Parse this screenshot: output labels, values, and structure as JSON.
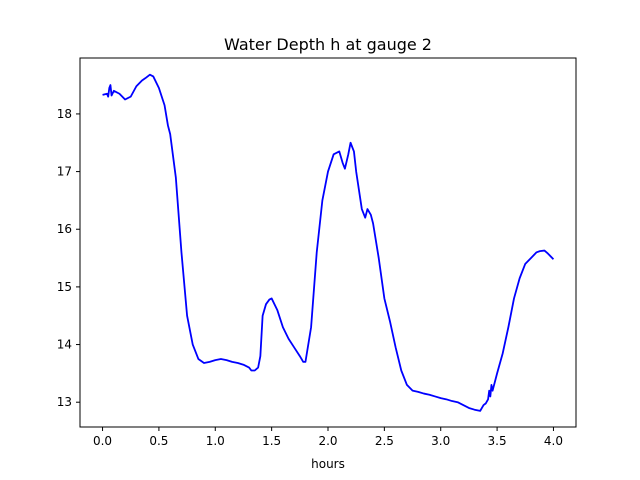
{
  "chart_data": {
    "type": "line",
    "title": "Water Depth h at gauge 2",
    "xlabel": "hours",
    "ylabel": "",
    "xlim": [
      -0.2,
      4.2
    ],
    "ylim": [
      12.57,
      18.97
    ],
    "xticks": [
      0.0,
      0.5,
      1.0,
      1.5,
      2.0,
      2.5,
      3.0,
      3.5,
      4.0
    ],
    "xtick_labels": [
      "0.0",
      "0.5",
      "1.0",
      "1.5",
      "2.0",
      "2.5",
      "3.0",
      "3.5",
      "4.0"
    ],
    "yticks": [
      13,
      14,
      15,
      16,
      17,
      18
    ],
    "ytick_labels": [
      "13",
      "14",
      "15",
      "16",
      "17",
      "18"
    ],
    "grid": false,
    "series": [
      {
        "color": "#0000ff",
        "x": [
          0.0,
          0.04,
          0.05,
          0.06,
          0.07,
          0.08,
          0.1,
          0.15,
          0.2,
          0.25,
          0.3,
          0.35,
          0.38,
          0.42,
          0.45,
          0.5,
          0.55,
          0.58,
          0.6,
          0.65,
          0.7,
          0.75,
          0.8,
          0.85,
          0.9,
          0.95,
          1.0,
          1.05,
          1.1,
          1.15,
          1.2,
          1.25,
          1.3,
          1.32,
          1.35,
          1.38,
          1.4,
          1.42,
          1.45,
          1.48,
          1.5,
          1.55,
          1.6,
          1.65,
          1.7,
          1.75,
          1.78,
          1.8,
          1.85,
          1.9,
          1.95,
          2.0,
          2.05,
          2.1,
          2.13,
          2.15,
          2.18,
          2.2,
          2.23,
          2.25,
          2.3,
          2.33,
          2.35,
          2.38,
          2.4,
          2.45,
          2.5,
          2.55,
          2.6,
          2.65,
          2.7,
          2.75,
          2.8,
          2.85,
          2.9,
          2.95,
          3.0,
          3.05,
          3.1,
          3.15,
          3.2,
          3.25,
          3.3,
          3.35,
          3.38,
          3.4,
          3.42,
          3.43,
          3.44,
          3.45,
          3.46,
          3.48,
          3.5,
          3.55,
          3.6,
          3.65,
          3.7,
          3.75,
          3.8,
          3.85,
          3.88,
          3.92,
          3.95,
          4.0
        ],
        "values": [
          18.33,
          18.35,
          18.3,
          18.45,
          18.5,
          18.32,
          18.4,
          18.35,
          18.25,
          18.3,
          18.48,
          18.58,
          18.62,
          18.68,
          18.65,
          18.45,
          18.15,
          17.8,
          17.65,
          16.9,
          15.6,
          14.5,
          14.0,
          13.75,
          13.68,
          13.7,
          13.73,
          13.75,
          13.73,
          13.7,
          13.68,
          13.65,
          13.6,
          13.55,
          13.55,
          13.6,
          13.8,
          14.5,
          14.7,
          14.78,
          14.8,
          14.6,
          14.3,
          14.1,
          13.95,
          13.8,
          13.7,
          13.7,
          14.3,
          15.6,
          16.5,
          17.0,
          17.3,
          17.35,
          17.15,
          17.05,
          17.3,
          17.5,
          17.35,
          17.0,
          16.35,
          16.2,
          16.35,
          16.25,
          16.1,
          15.5,
          14.8,
          14.4,
          13.95,
          13.55,
          13.3,
          13.2,
          13.18,
          13.15,
          13.13,
          13.1,
          13.07,
          13.05,
          13.02,
          13.0,
          12.95,
          12.9,
          12.87,
          12.85,
          12.95,
          12.98,
          13.05,
          13.2,
          13.1,
          13.3,
          13.2,
          13.35,
          13.5,
          13.85,
          14.3,
          14.8,
          15.15,
          15.4,
          15.5,
          15.6,
          15.62,
          15.63,
          15.58,
          15.48
        ]
      }
    ]
  }
}
